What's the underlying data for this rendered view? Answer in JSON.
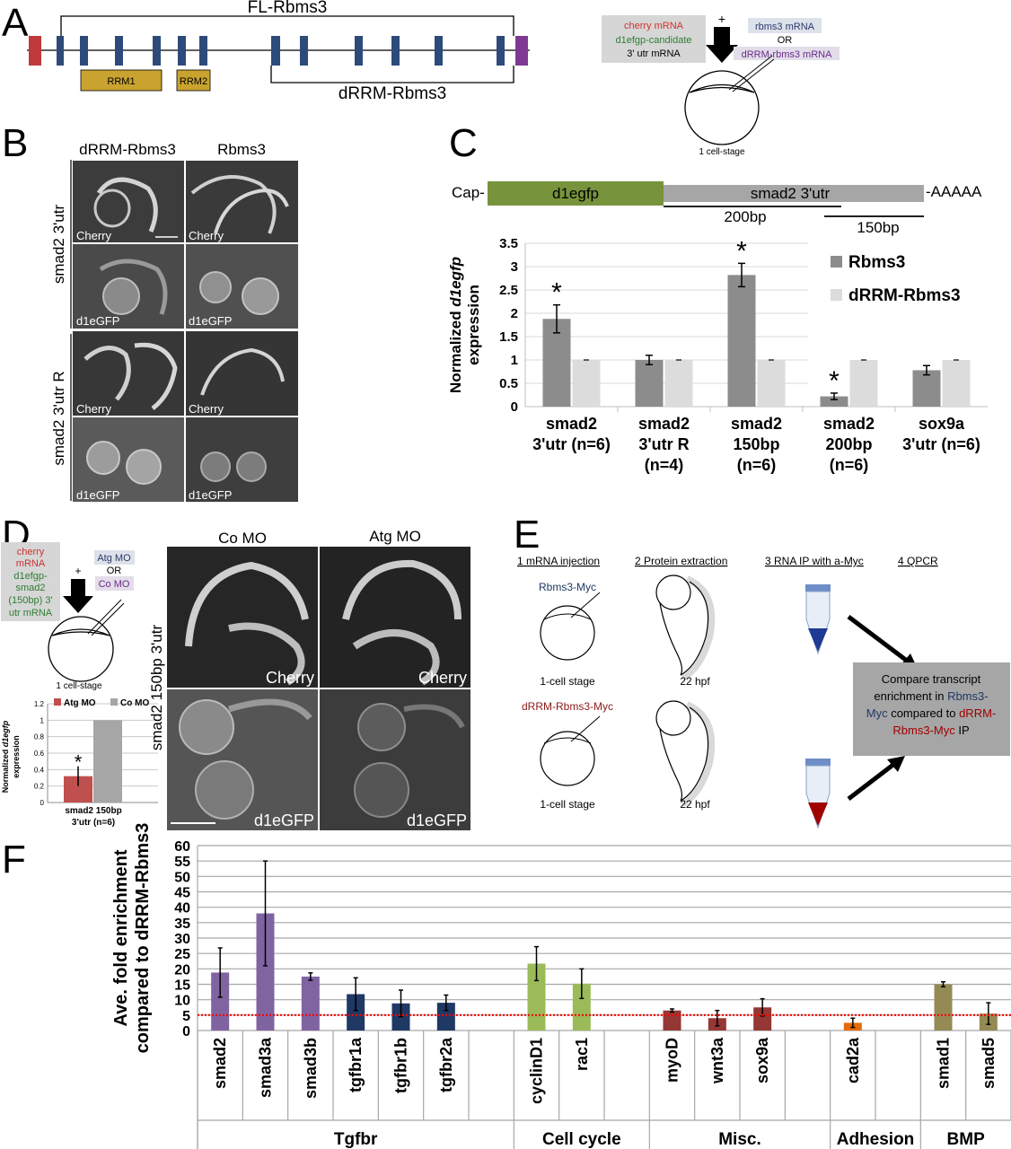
{
  "panels": {
    "A": {
      "letter": "A",
      "fl_label": "FL-Rbms3",
      "drrm_label": "dRRM-Rbms3",
      "rrm1": "RRM1",
      "rrm2": "RRM2",
      "injection": {
        "cherry": "cherry mRNA",
        "d1egfp": "d1efgp-candidate",
        "utr": "3' utr mRNA",
        "plus": "+",
        "rbms3": "rbms3 mRNA",
        "or": "OR",
        "drrm": "dRRM-rbms3 mRNA",
        "stage": "1 cell-stage"
      }
    },
    "B": {
      "letter": "B",
      "col1": "dRRM-Rbms3",
      "col2": "Rbms3",
      "row_group1": "smad2 3'utr",
      "row_group2": "smad2 3'utr R",
      "cherry": "Cherry",
      "d1egfp": "d1eGFP"
    },
    "C": {
      "letter": "C",
      "cap": "Cap-",
      "d1egfp": "d1egfp",
      "smad2_utr": "smad2 3'utr",
      "polya": "-AAAAA",
      "bp200": "200bp",
      "bp150": "150bp",
      "ylabel_prefix": "Normalized ",
      "ylabel_gene": "d1egfp",
      "ylabel_suffix": "expression"
    },
    "D": {
      "letter": "D",
      "col1": "Co MO",
      "col2": "Atg MO",
      "row_label": "smad2 150bp 3'utr",
      "cherry": "Cherry",
      "d1egfp": "d1eGFP",
      "injection": {
        "cherry": "cherry",
        "mrna": "mRNA",
        "d1egfp": "d1efgp-",
        "smad2": "smad2",
        "bp150": "(150bp) 3'",
        "utr": "utr mRNA",
        "plus": "+",
        "atg": "Atg MO",
        "or": "OR",
        "co": "Co MO",
        "stage": "1 cell-stage"
      },
      "ylabel_prefix": "Normalized ",
      "ylabel_gene": "d1egfp",
      "ylabel_suffix": "expression"
    },
    "E": {
      "letter": "E",
      "step1": "1  mRNA injection",
      "step2": "2  Protein extraction",
      "step3": "3  RNA IP with a-Myc",
      "step4": "4  QPCR",
      "rbms3_myc": "Rbms3-Myc",
      "drrm_myc": "dRRM-Rbms3-Myc",
      "stage1": "1-cell stage",
      "stage2": "1-cell stage",
      "hpf1": "22 hpf",
      "hpf2": "22 hpf",
      "compare_l1": "Compare transcript",
      "compare_l2a": "enrichment in ",
      "compare_l2b": "Rbms3-",
      "compare_l3a": "Myc",
      "compare_l3b": " compared to ",
      "compare_l3c": "dRRM-",
      "compare_l4a": "Rbms3-Myc",
      "compare_l4b": "  IP"
    },
    "F": {
      "letter": "F",
      "ylabel1": "Ave. fold enrichment",
      "ylabel2": "compared to dRRM-Rbms3"
    }
  },
  "chart_data": [
    {
      "id": "C",
      "type": "bar",
      "categories": [
        [
          "smad2",
          "3'utr (n=6)"
        ],
        [
          "smad2",
          "3'utr R",
          "(n=4)"
        ],
        [
          "smad2",
          "150bp",
          "(n=6)"
        ],
        [
          "smad2",
          "200bp",
          "(n=6)"
        ],
        [
          "sox9a",
          "3'utr (n=6)"
        ]
      ],
      "series": [
        {
          "name": "Rbms3",
          "color": "#8c8c8c",
          "values": [
            1.88,
            1.0,
            2.82,
            0.22,
            0.78
          ],
          "errors": [
            0.3,
            0.1,
            0.25,
            0.07,
            0.1
          ]
        },
        {
          "name": "dRRM-Rbms3",
          "color": "#dcdcdc",
          "values": [
            1.0,
            1.0,
            1.0,
            1.0,
            1.0
          ],
          "errors": [
            0,
            0,
            0,
            0,
            0
          ]
        }
      ],
      "significant": [
        [
          true,
          false
        ],
        [
          false,
          false
        ],
        [
          true,
          false
        ],
        [
          true,
          false
        ],
        [
          false,
          false
        ]
      ],
      "star": "*",
      "ylim": [
        0,
        3.5
      ],
      "yticks": [
        "0",
        "0.5",
        "1",
        "1.5",
        "2",
        "2.5",
        "3",
        "3.5"
      ],
      "grid": true,
      "legend": "right"
    },
    {
      "id": "D",
      "type": "bar",
      "categories": [
        [
          "smad2  150bp",
          "3'utr (n=6)"
        ]
      ],
      "series": [
        {
          "name": "Atg MO",
          "color": "#c0504d",
          "values": [
            0.32
          ],
          "errors": [
            0.12
          ]
        },
        {
          "name": "Co MO",
          "color": "#a6a6a6",
          "values": [
            1.0
          ],
          "errors": [
            0
          ]
        }
      ],
      "significant": [
        [
          true,
          false
        ]
      ],
      "star": "*",
      "ylim": [
        0,
        1.2
      ],
      "yticks": [
        "0",
        "0.2",
        "0.4",
        "0.6",
        "0.8",
        "1",
        "1.2"
      ],
      "grid": true,
      "legend": "top"
    },
    {
      "id": "F",
      "type": "bar",
      "categories": [
        "smad2",
        "smad3a",
        "smad3b",
        "tgfbr1a",
        "tgfbr1b",
        "tgfbr2a",
        "",
        "cyclinD1",
        "rac1",
        "",
        "myoD",
        "wnt3a",
        "sox9a",
        "",
        "cad2a",
        "",
        "smad1",
        "smad5"
      ],
      "values": [
        18.8,
        38,
        17.5,
        11.8,
        8.8,
        9,
        null,
        21.7,
        15.2,
        null,
        6.5,
        4,
        7.5,
        null,
        2.5,
        null,
        15,
        5.5
      ],
      "errors": [
        8,
        17,
        1.2,
        5.3,
        4.3,
        2.5,
        null,
        5.5,
        4.8,
        null,
        0.5,
        2.5,
        2.8,
        null,
        1.5,
        null,
        0.8,
        3.5
      ],
      "colors": [
        "#8064a2",
        "#8064a2",
        "#8064a2",
        "#1f3864",
        "#1f3864",
        "#1f3864",
        "",
        "#9bbb59",
        "#9bbb59",
        "",
        "#953735",
        "#953735",
        "#953735",
        "",
        "#e46c0a",
        "",
        "#948a54",
        "#948a54"
      ],
      "groups": [
        {
          "label": "Tgfbr",
          "from": 0,
          "to": 6
        },
        {
          "label": "Cell cycle",
          "from": 7,
          "to": 9
        },
        {
          "label": "Misc.",
          "from": 10,
          "to": 13
        },
        {
          "label": "Adhesion",
          "from": 14,
          "to": 15
        },
        {
          "label": "BMP",
          "from": 16,
          "to": 17
        }
      ],
      "threshold": 5,
      "threshold_color": "#ff0000",
      "ylim": [
        0,
        60
      ],
      "yticks": [
        "0",
        "5",
        "10",
        "15",
        "20",
        "25",
        "30",
        "35",
        "40",
        "45",
        "50",
        "55",
        "60"
      ],
      "grid": true
    }
  ]
}
